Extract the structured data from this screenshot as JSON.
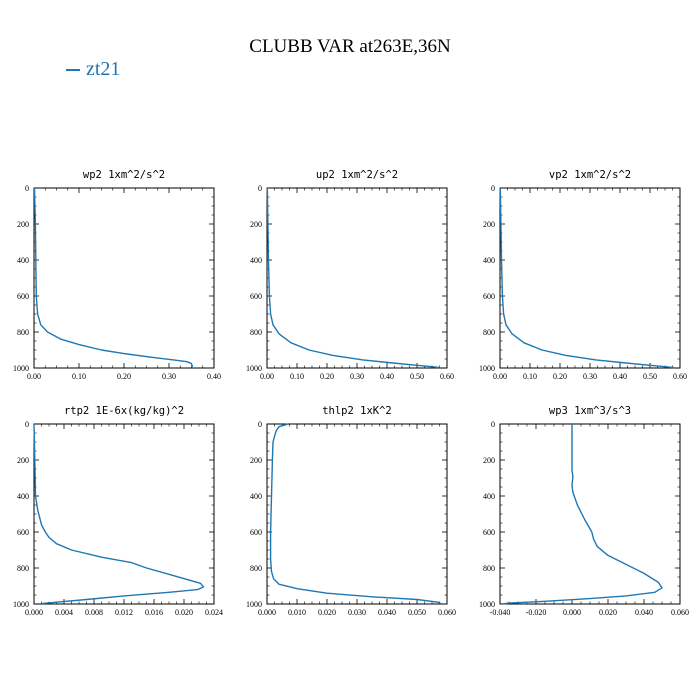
{
  "title": "CLUBB VAR at263E,36N",
  "legend": [
    {
      "name": "zt21",
      "color": "#1f77b4"
    }
  ],
  "chart_data": [
    {
      "type": "line",
      "subtitle": "wp2  1xm^2/s^2",
      "xlim": [
        0,
        0.4
      ],
      "ylim": [
        1000,
        0
      ],
      "xticks": [
        "0.00",
        "0.10",
        "0.20",
        "0.30",
        "0.40"
      ],
      "xtick_values": [
        0,
        0.1,
        0.2,
        0.3,
        0.4
      ],
      "yticks": [
        "0",
        "200",
        "400",
        "600",
        "800",
        "1000"
      ],
      "ytick_values": [
        0,
        200,
        400,
        600,
        800,
        1000
      ],
      "series": [
        {
          "name": "zt21",
          "color": "#1f77b4",
          "x": [
            0.001,
            0.002,
            0.003,
            0.004,
            0.005,
            0.008,
            0.015,
            0.03,
            0.06,
            0.1,
            0.15,
            0.2,
            0.26,
            0.31,
            0.34,
            0.35,
            0.352
          ],
          "y": [
            0,
            100,
            200,
            400,
            600,
            700,
            760,
            800,
            840,
            870,
            900,
            920,
            940,
            955,
            965,
            975,
            995
          ]
        }
      ]
    },
    {
      "type": "line",
      "subtitle": "up2  1xm^2/s^2",
      "xlim": [
        0,
        0.6
      ],
      "ylim": [
        1000,
        0
      ],
      "xticks": [
        "0.00",
        "0.10",
        "0.20",
        "0.30",
        "0.40",
        "0.50",
        "0.60"
      ],
      "xtick_values": [
        0,
        0.1,
        0.2,
        0.3,
        0.4,
        0.5,
        0.6
      ],
      "yticks": [
        "0",
        "200",
        "400",
        "600",
        "800",
        "1000"
      ],
      "ytick_values": [
        0,
        200,
        400,
        600,
        800,
        1000
      ],
      "series": [
        {
          "name": "zt21",
          "color": "#1f77b4",
          "x": [
            0.001,
            0.002,
            0.003,
            0.005,
            0.008,
            0.012,
            0.02,
            0.04,
            0.08,
            0.14,
            0.22,
            0.32,
            0.42,
            0.5,
            0.55,
            0.575
          ],
          "y": [
            0,
            100,
            200,
            400,
            600,
            700,
            760,
            810,
            860,
            900,
            930,
            955,
            972,
            985,
            993,
            998
          ]
        }
      ]
    },
    {
      "type": "line",
      "subtitle": "vp2  1xm^2/s^2",
      "xlim": [
        0,
        0.6
      ],
      "ylim": [
        1000,
        0
      ],
      "xticks": [
        "0.00",
        "0.10",
        "0.20",
        "0.30",
        "0.40",
        "0.50",
        "0.60"
      ],
      "xtick_values": [
        0,
        0.1,
        0.2,
        0.3,
        0.4,
        0.5,
        0.6
      ],
      "yticks": [
        "0",
        "200",
        "400",
        "600",
        "800",
        "1000"
      ],
      "ytick_values": [
        0,
        200,
        400,
        600,
        800,
        1000
      ],
      "series": [
        {
          "name": "zt21",
          "color": "#1f77b4",
          "x": [
            0.001,
            0.002,
            0.003,
            0.005,
            0.008,
            0.012,
            0.02,
            0.04,
            0.08,
            0.14,
            0.22,
            0.32,
            0.42,
            0.5,
            0.55,
            0.58
          ],
          "y": [
            0,
            100,
            200,
            400,
            600,
            700,
            760,
            810,
            860,
            900,
            930,
            955,
            972,
            985,
            993,
            998
          ]
        }
      ]
    },
    {
      "type": "line",
      "subtitle": "rtp2  1E-6x(kg/kg)^2",
      "xlim": [
        0,
        0.024
      ],
      "ylim": [
        1000,
        0
      ],
      "xticks": [
        "0.000",
        "0.004",
        "0.008",
        "0.012",
        "0.016",
        "0.020",
        "0.024"
      ],
      "xtick_values": [
        0,
        0.004,
        0.008,
        0.012,
        0.016,
        0.02,
        0.024
      ],
      "yticks": [
        "0",
        "200",
        "400",
        "600",
        "800",
        "1000"
      ],
      "ytick_values": [
        0,
        200,
        400,
        600,
        800,
        1000
      ],
      "series": [
        {
          "name": "zt21",
          "color": "#1f77b4",
          "x": [
            0.0,
            0.0001,
            0.0002,
            0.0005,
            0.001,
            0.0015,
            0.002,
            0.003,
            0.005,
            0.009,
            0.013,
            0.015,
            0.018,
            0.0205,
            0.0222,
            0.0226,
            0.0218,
            0.018,
            0.012,
            0.007,
            0.003,
            0.001
          ],
          "y": [
            0,
            200,
            400,
            480,
            560,
            600,
            630,
            665,
            700,
            740,
            770,
            800,
            835,
            865,
            885,
            905,
            920,
            935,
            955,
            975,
            990,
            998
          ]
        }
      ]
    },
    {
      "type": "line",
      "subtitle": "thlp2  1xK^2",
      "xlim": [
        0,
        0.06
      ],
      "ylim": [
        1000,
        0
      ],
      "xticks": [
        "0.000",
        "0.010",
        "0.020",
        "0.030",
        "0.040",
        "0.050",
        "0.060"
      ],
      "xtick_values": [
        0,
        0.01,
        0.02,
        0.03,
        0.04,
        0.05,
        0.06
      ],
      "yticks": [
        "0",
        "200",
        "400",
        "600",
        "800",
        "1000"
      ],
      "ytick_values": [
        0,
        200,
        400,
        600,
        800,
        1000
      ],
      "series": [
        {
          "name": "zt21",
          "color": "#1f77b4",
          "x": [
            0.007,
            0.006,
            0.004,
            0.003,
            0.002,
            0.0018,
            0.0015,
            0.0012,
            0.0012,
            0.0015,
            0.0022,
            0.004,
            0.01,
            0.02,
            0.035,
            0.05,
            0.057,
            0.058
          ],
          "y": [
            0,
            5,
            15,
            40,
            100,
            200,
            400,
            600,
            750,
            820,
            860,
            890,
            915,
            940,
            960,
            975,
            990,
            998
          ]
        }
      ]
    },
    {
      "type": "line",
      "subtitle": "wp3  1xm^3/s^3",
      "xlim": [
        -0.04,
        0.06
      ],
      "ylim": [
        1000,
        0
      ],
      "xticks": [
        "-0.040",
        "-0.020",
        "0.000",
        "0.020",
        "0.040",
        "0.060"
      ],
      "xtick_values": [
        -0.04,
        -0.02,
        0,
        0.02,
        0.04,
        0.06
      ],
      "yticks": [
        "0",
        "200",
        "400",
        "600",
        "800",
        "1000"
      ],
      "ytick_values": [
        0,
        200,
        400,
        600,
        800,
        1000
      ],
      "series": [
        {
          "name": "zt21",
          "color": "#1f77b4",
          "x": [
            0.0,
            0.0,
            0.0,
            0.0005,
            0.0,
            0.0005,
            0.003,
            0.007,
            0.011,
            0.012,
            0.014,
            0.02,
            0.03,
            0.04,
            0.048,
            0.05,
            0.046,
            0.03,
            0.01,
            -0.015,
            -0.035,
            -0.039
          ],
          "y": [
            0,
            100,
            260,
            290,
            340,
            380,
            450,
            530,
            600,
            640,
            680,
            730,
            780,
            830,
            880,
            910,
            935,
            955,
            970,
            985,
            995,
            1000
          ]
        }
      ]
    }
  ]
}
